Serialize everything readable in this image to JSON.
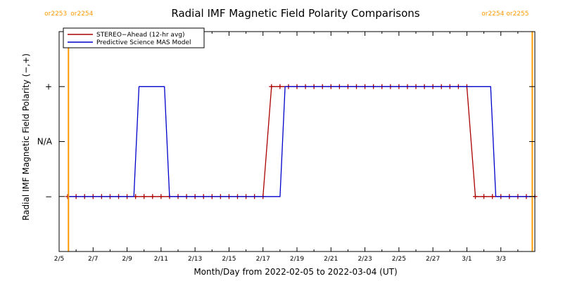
{
  "chart_data": {
    "type": "line",
    "title": "Radial IMF Magnetic Field Polarity Comparisons",
    "xlabel": "Month/Day from 2022-02-05 to 2022-03-04 (UT)",
    "ylabel": "Radial IMF Magnetic Field Polarity (−,+)",
    "x_range_days": [
      0,
      28
    ],
    "ylim": [
      -2,
      2
    ],
    "x_ticks": [
      {
        "day": 0,
        "label": "2/5"
      },
      {
        "day": 2,
        "label": "2/7"
      },
      {
        "day": 4,
        "label": "2/9"
      },
      {
        "day": 6,
        "label": "2/11"
      },
      {
        "day": 8,
        "label": "2/13"
      },
      {
        "day": 10,
        "label": "2/15"
      },
      {
        "day": 12,
        "label": "2/17"
      },
      {
        "day": 14,
        "label": "2/19"
      },
      {
        "day": 16,
        "label": "2/21"
      },
      {
        "day": 18,
        "label": "2/23"
      },
      {
        "day": 20,
        "label": "2/25"
      },
      {
        "day": 22,
        "label": "2/27"
      },
      {
        "day": 24,
        "label": "3/1"
      },
      {
        "day": 26,
        "label": "3/3"
      }
    ],
    "y_ticks": [
      {
        "value": 1,
        "label": "+"
      },
      {
        "value": 0,
        "label": "N/A"
      },
      {
        "value": -1,
        "label": "−"
      }
    ],
    "carrington_markers": [
      {
        "day": 0.55,
        "left_label": "or2253",
        "right_label": "or2254",
        "color": "#ff9900"
      },
      {
        "day": 27.85,
        "left_label": "or2254",
        "right_label": "or2255",
        "color": "#ff9900"
      }
    ],
    "series": [
      {
        "name": "STEREO−Ahead (12-hr avg)",
        "color": "#aa0000",
        "marker": "plus",
        "points": [
          [
            0.5,
            -1
          ],
          [
            1.0,
            -1
          ],
          [
            1.5,
            -1
          ],
          [
            2.0,
            -1
          ],
          [
            2.5,
            -1
          ],
          [
            3.0,
            -1
          ],
          [
            3.5,
            -1
          ],
          [
            4.0,
            -1
          ],
          [
            4.5,
            -1
          ],
          [
            5.0,
            -1
          ],
          [
            5.5,
            -1
          ],
          [
            6.0,
            -1
          ],
          [
            6.5,
            -1
          ],
          [
            7.0,
            -1
          ],
          [
            7.5,
            -1
          ],
          [
            8.0,
            -1
          ],
          [
            8.5,
            -1
          ],
          [
            9.0,
            -1
          ],
          [
            9.5,
            -1
          ],
          [
            10.0,
            -1
          ],
          [
            10.5,
            -1
          ],
          [
            11.0,
            -1
          ],
          [
            11.5,
            -1
          ],
          [
            12.0,
            -1
          ],
          [
            12.5,
            1
          ],
          [
            13.0,
            1
          ],
          [
            13.5,
            1
          ],
          [
            14.0,
            1
          ],
          [
            14.5,
            1
          ],
          [
            15.0,
            1
          ],
          [
            15.5,
            1
          ],
          [
            16.0,
            1
          ],
          [
            16.5,
            1
          ],
          [
            17.0,
            1
          ],
          [
            17.5,
            1
          ],
          [
            18.0,
            1
          ],
          [
            18.5,
            1
          ],
          [
            19.0,
            1
          ],
          [
            19.5,
            1
          ],
          [
            20.0,
            1
          ],
          [
            20.5,
            1
          ],
          [
            21.0,
            1
          ],
          [
            21.5,
            1
          ],
          [
            22.0,
            1
          ],
          [
            22.5,
            1
          ],
          [
            23.0,
            1
          ],
          [
            23.5,
            1
          ],
          [
            24.0,
            1
          ],
          [
            24.5,
            -1
          ],
          [
            25.0,
            -1
          ],
          [
            25.5,
            -1
          ],
          [
            26.0,
            -1
          ],
          [
            26.5,
            -1
          ],
          [
            27.0,
            -1
          ],
          [
            27.5,
            -1
          ],
          [
            28.0,
            -1
          ]
        ]
      },
      {
        "name": "Predictive Science MAS Model",
        "color": "#0000cc",
        "marker": "none",
        "points": [
          [
            0.5,
            -1
          ],
          [
            4.4,
            -1
          ],
          [
            4.7,
            1
          ],
          [
            6.2,
            1
          ],
          [
            6.5,
            -1
          ],
          [
            13.0,
            -1
          ],
          [
            13.3,
            1
          ],
          [
            25.4,
            1
          ],
          [
            25.7,
            -1
          ],
          [
            28.0,
            -1
          ]
        ]
      }
    ]
  }
}
